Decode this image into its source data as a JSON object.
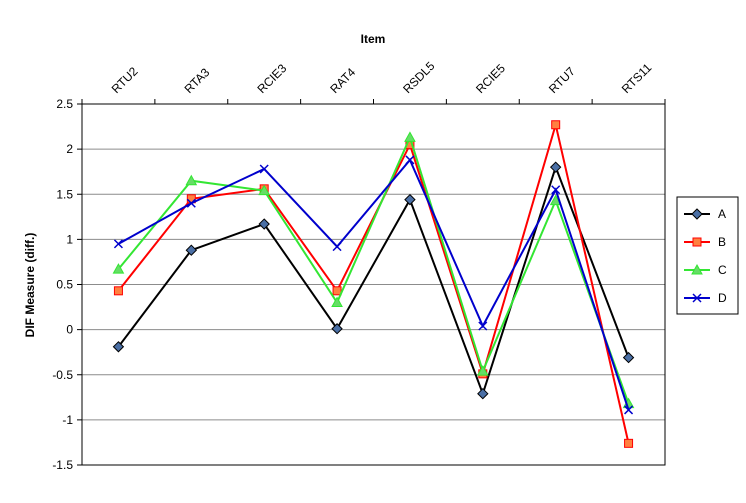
{
  "chart_data": {
    "type": "line",
    "title": "",
    "xlabel": "Item",
    "ylabel": "DIF Measure (diff.)",
    "x_axis_position": "top",
    "categories": [
      "RTU2",
      "RTA3",
      "RCIE3",
      "RAT4",
      "RSDL5",
      "RCIE5",
      "RTU7",
      "RTS11"
    ],
    "ylim": [
      -1.5,
      2.5
    ],
    "y_ticks": [
      "2.5",
      "2",
      "1.5",
      "1",
      "0.5",
      "0",
      "-0.5",
      "-1",
      "-1.5"
    ],
    "grid": true,
    "legend_position": "right",
    "series": [
      {
        "name": "A",
        "color": "#000000",
        "marker": "diamond",
        "marker_fill": "#4a6fa5",
        "values": [
          -0.19,
          0.88,
          1.17,
          0.01,
          1.44,
          -0.71,
          1.8,
          -0.31
        ]
      },
      {
        "name": "B",
        "color": "#ff0000",
        "marker": "square",
        "marker_fill": "#ff8040",
        "values": [
          0.43,
          1.45,
          1.56,
          0.43,
          2.05,
          -0.49,
          2.27,
          -1.26
        ]
      },
      {
        "name": "C",
        "color": "#33e633",
        "marker": "triangle",
        "marker_fill": "#66dd66",
        "values": [
          0.67,
          1.65,
          1.54,
          0.3,
          2.13,
          -0.46,
          1.43,
          -0.82
        ]
      },
      {
        "name": "D",
        "color": "#0000cc",
        "marker": "x",
        "marker_fill": "#0000cc",
        "values": [
          0.95,
          1.4,
          1.78,
          0.92,
          1.88,
          0.04,
          1.55,
          -0.89
        ]
      }
    ]
  }
}
